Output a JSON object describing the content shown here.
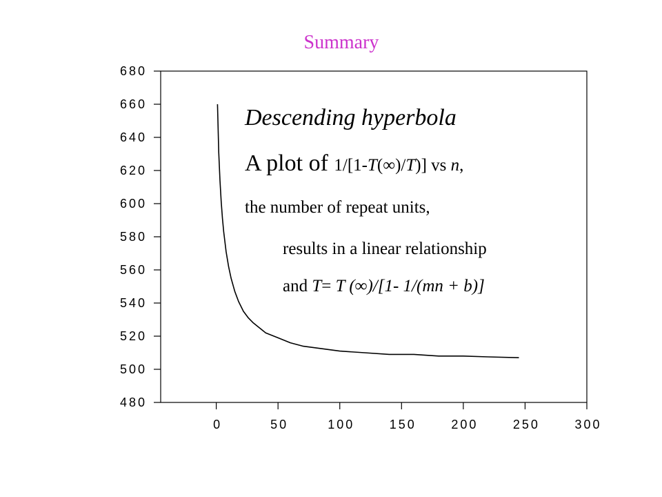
{
  "title": "Summary",
  "colors": {
    "title": "#cc33cc",
    "axis": "#000000",
    "curve": "#000000"
  },
  "annotation": {
    "heading": "Descending hyperbola",
    "line1_a": "A plot of ",
    "line1_b": "1/[1-",
    "line1_c": "T",
    "line1_d": "(∞)/",
    "line1_e": "T",
    "line1_f": ")] vs ",
    "line1_g": "n",
    "line1_h": ",",
    "line2": "the number of repeat units,",
    "line3": "results in a linear relationship",
    "line4_a": "and ",
    "line4_b": "T",
    "line4_c": "= ",
    "line4_d": "T (∞)/[1- 1/(mn + b)]"
  },
  "chart_data": {
    "type": "line",
    "title": "Summary",
    "xlabel": "",
    "ylabel": "",
    "xlim": [
      -45,
      300
    ],
    "ylim": [
      480,
      680
    ],
    "xticks": [
      0,
      50,
      100,
      150,
      200,
      250,
      300
    ],
    "yticks": [
      480,
      500,
      520,
      540,
      560,
      580,
      600,
      620,
      640,
      660,
      680
    ],
    "grid": false,
    "series": [
      {
        "x": [
          1,
          2,
          3,
          4,
          5,
          6,
          8,
          10,
          12,
          15,
          18,
          22,
          26,
          30,
          35,
          40,
          50,
          60,
          70,
          80,
          100,
          120,
          140,
          160,
          180,
          200,
          220,
          245
        ],
        "y": [
          660,
          631,
          614,
          601,
          591,
          583,
          571,
          562,
          555,
          547,
          541,
          535,
          531,
          528,
          525,
          522,
          519,
          516,
          514,
          513,
          511,
          510,
          509,
          509,
          508,
          508,
          507.5,
          507
        ]
      }
    ]
  }
}
